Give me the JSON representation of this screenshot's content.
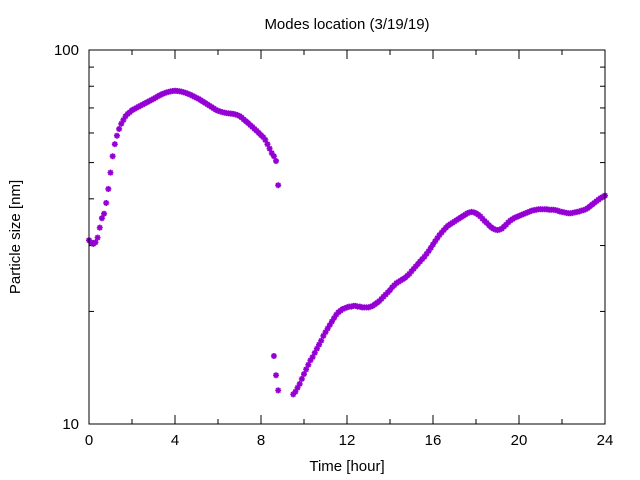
{
  "chart_data": {
    "type": "scatter",
    "title": "Modes location (3/19/19)",
    "xlabel": "Time [hour]",
    "ylabel": "Particle size [nm]",
    "xlim": [
      0,
      24
    ],
    "ylim": [
      10,
      100
    ],
    "yscale": "log",
    "xticks": [
      0,
      4,
      8,
      12,
      16,
      20,
      24
    ],
    "yticks": [
      10,
      100
    ],
    "grid": false,
    "marker_color": "#9400D3",
    "series": [
      {
        "points": [
          [
            0.0,
            31.0
          ],
          [
            0.1,
            30.6
          ],
          [
            0.2,
            30.3
          ],
          [
            0.3,
            30.6
          ],
          [
            0.4,
            31.5
          ],
          [
            0.5,
            33.5
          ],
          [
            0.6,
            35.5
          ],
          [
            0.7,
            36.5
          ],
          [
            0.8,
            39.0
          ],
          [
            0.9,
            42.5
          ],
          [
            1.0,
            47.0
          ],
          [
            1.1,
            52.0
          ],
          [
            1.2,
            56.0
          ],
          [
            1.3,
            59.0
          ],
          [
            1.4,
            61.5
          ],
          [
            1.5,
            63.5
          ],
          [
            1.6,
            65.0
          ],
          [
            1.7,
            66.5
          ],
          [
            1.8,
            67.5
          ],
          [
            1.9,
            68.2
          ],
          [
            2.0,
            69.0
          ],
          [
            2.1,
            69.5
          ],
          [
            2.2,
            70.0
          ],
          [
            2.3,
            70.5
          ],
          [
            2.4,
            71.0
          ],
          [
            2.5,
            71.5
          ],
          [
            2.6,
            72.0
          ],
          [
            2.7,
            72.5
          ],
          [
            2.8,
            73.0
          ],
          [
            2.9,
            73.5
          ],
          [
            3.0,
            74.0
          ],
          [
            3.1,
            74.6
          ],
          [
            3.2,
            75.2
          ],
          [
            3.3,
            75.7
          ],
          [
            3.4,
            76.2
          ],
          [
            3.5,
            76.6
          ],
          [
            3.6,
            77.0
          ],
          [
            3.7,
            77.3
          ],
          [
            3.8,
            77.5
          ],
          [
            3.9,
            77.7
          ],
          [
            4.0,
            77.8
          ],
          [
            4.1,
            77.7
          ],
          [
            4.2,
            77.6
          ],
          [
            4.3,
            77.4
          ],
          [
            4.4,
            77.1
          ],
          [
            4.5,
            76.8
          ],
          [
            4.6,
            76.4
          ],
          [
            4.7,
            76.0
          ],
          [
            4.8,
            75.5
          ],
          [
            4.9,
            75.0
          ],
          [
            5.0,
            74.5
          ],
          [
            5.1,
            74.0
          ],
          [
            5.2,
            73.4
          ],
          [
            5.3,
            72.8
          ],
          [
            5.4,
            72.2
          ],
          [
            5.5,
            71.6
          ],
          [
            5.6,
            71.0
          ],
          [
            5.7,
            70.4
          ],
          [
            5.8,
            69.8
          ],
          [
            5.9,
            69.2
          ],
          [
            6.0,
            68.8
          ],
          [
            6.1,
            68.5
          ],
          [
            6.2,
            68.2
          ],
          [
            6.3,
            68.0
          ],
          [
            6.4,
            67.8
          ],
          [
            6.5,
            67.7
          ],
          [
            6.6,
            67.6
          ],
          [
            6.7,
            67.5
          ],
          [
            6.8,
            67.3
          ],
          [
            6.9,
            67.0
          ],
          [
            7.0,
            66.6
          ],
          [
            7.1,
            66.0
          ],
          [
            7.2,
            65.2
          ],
          [
            7.3,
            64.5
          ],
          [
            7.4,
            63.8
          ],
          [
            7.5,
            63.0
          ],
          [
            7.6,
            62.3
          ],
          [
            7.7,
            61.5
          ],
          [
            7.8,
            60.8
          ],
          [
            7.9,
            60.0
          ],
          [
            8.0,
            59.2
          ],
          [
            8.1,
            58.5
          ],
          [
            8.2,
            57.5
          ],
          [
            8.3,
            56.0
          ],
          [
            8.4,
            54.5
          ],
          [
            8.5,
            53.0
          ],
          [
            8.6,
            52.0
          ],
          [
            8.7,
            50.5
          ],
          [
            8.8,
            43.5
          ],
          [
            8.6,
            15.2
          ],
          [
            8.7,
            13.5
          ],
          [
            8.8,
            12.3
          ],
          [
            9.5,
            12.0
          ],
          [
            9.6,
            12.2
          ],
          [
            9.7,
            12.5
          ],
          [
            9.8,
            12.8
          ],
          [
            9.9,
            13.2
          ],
          [
            10.0,
            13.6
          ],
          [
            10.1,
            14.0
          ],
          [
            10.2,
            14.4
          ],
          [
            10.3,
            14.8
          ],
          [
            10.4,
            15.1
          ],
          [
            10.5,
            15.5
          ],
          [
            10.6,
            15.9
          ],
          [
            10.7,
            16.3
          ],
          [
            10.8,
            16.7
          ],
          [
            10.9,
            17.2
          ],
          [
            11.0,
            17.6
          ],
          [
            11.1,
            18.0
          ],
          [
            11.2,
            18.4
          ],
          [
            11.3,
            18.8
          ],
          [
            11.4,
            19.2
          ],
          [
            11.5,
            19.6
          ],
          [
            11.6,
            19.9
          ],
          [
            11.7,
            20.1
          ],
          [
            11.8,
            20.3
          ],
          [
            11.9,
            20.4
          ],
          [
            12.0,
            20.5
          ],
          [
            12.1,
            20.6
          ],
          [
            12.2,
            20.6
          ],
          [
            12.3,
            20.7
          ],
          [
            12.4,
            20.7
          ],
          [
            12.5,
            20.6
          ],
          [
            12.6,
            20.6
          ],
          [
            12.7,
            20.5
          ],
          [
            12.8,
            20.5
          ],
          [
            12.9,
            20.5
          ],
          [
            13.0,
            20.5
          ],
          [
            13.1,
            20.6
          ],
          [
            13.2,
            20.7
          ],
          [
            13.3,
            20.9
          ],
          [
            13.4,
            21.1
          ],
          [
            13.5,
            21.3
          ],
          [
            13.6,
            21.6
          ],
          [
            13.7,
            21.9
          ],
          [
            13.8,
            22.2
          ],
          [
            13.9,
            22.5
          ],
          [
            14.0,
            22.8
          ],
          [
            14.1,
            23.2
          ],
          [
            14.2,
            23.5
          ],
          [
            14.3,
            23.8
          ],
          [
            14.4,
            24.0
          ],
          [
            14.5,
            24.2
          ],
          [
            14.6,
            24.4
          ],
          [
            14.7,
            24.6
          ],
          [
            14.8,
            24.9
          ],
          [
            14.9,
            25.2
          ],
          [
            15.0,
            25.6
          ],
          [
            15.1,
            26.0
          ],
          [
            15.2,
            26.4
          ],
          [
            15.3,
            26.8
          ],
          [
            15.4,
            27.2
          ],
          [
            15.5,
            27.6
          ],
          [
            15.6,
            28.0
          ],
          [
            15.7,
            28.5
          ],
          [
            15.8,
            29.0
          ],
          [
            15.9,
            29.6
          ],
          [
            16.0,
            30.2
          ],
          [
            16.1,
            30.8
          ],
          [
            16.2,
            31.4
          ],
          [
            16.3,
            32.0
          ],
          [
            16.4,
            32.5
          ],
          [
            16.5,
            33.0
          ],
          [
            16.6,
            33.5
          ],
          [
            16.7,
            33.9
          ],
          [
            16.8,
            34.2
          ],
          [
            16.9,
            34.5
          ],
          [
            17.0,
            34.8
          ],
          [
            17.1,
            35.1
          ],
          [
            17.2,
            35.4
          ],
          [
            17.3,
            35.7
          ],
          [
            17.4,
            36.0
          ],
          [
            17.5,
            36.3
          ],
          [
            17.6,
            36.6
          ],
          [
            17.7,
            36.8
          ],
          [
            17.8,
            36.9
          ],
          [
            17.9,
            36.8
          ],
          [
            18.0,
            36.6
          ],
          [
            18.1,
            36.3
          ],
          [
            18.2,
            35.9
          ],
          [
            18.3,
            35.4
          ],
          [
            18.4,
            34.9
          ],
          [
            18.5,
            34.5
          ],
          [
            18.6,
            34.0
          ],
          [
            18.7,
            33.6
          ],
          [
            18.8,
            33.3
          ],
          [
            18.9,
            33.1
          ],
          [
            19.0,
            33.0
          ],
          [
            19.1,
            33.1
          ],
          [
            19.2,
            33.3
          ],
          [
            19.3,
            33.7
          ],
          [
            19.4,
            34.1
          ],
          [
            19.5,
            34.6
          ],
          [
            19.6,
            35.0
          ],
          [
            19.7,
            35.3
          ],
          [
            19.8,
            35.6
          ],
          [
            19.9,
            35.8
          ],
          [
            20.0,
            36.0
          ],
          [
            20.1,
            36.2
          ],
          [
            20.2,
            36.4
          ],
          [
            20.3,
            36.6
          ],
          [
            20.4,
            36.8
          ],
          [
            20.5,
            37.0
          ],
          [
            20.6,
            37.2
          ],
          [
            20.7,
            37.3
          ],
          [
            20.8,
            37.4
          ],
          [
            20.9,
            37.5
          ],
          [
            21.0,
            37.5
          ],
          [
            21.1,
            37.5
          ],
          [
            21.2,
            37.5
          ],
          [
            21.3,
            37.5
          ],
          [
            21.4,
            37.4
          ],
          [
            21.5,
            37.4
          ],
          [
            21.6,
            37.4
          ],
          [
            21.7,
            37.3
          ],
          [
            21.8,
            37.2
          ],
          [
            21.9,
            37.0
          ],
          [
            22.0,
            36.9
          ],
          [
            22.1,
            36.8
          ],
          [
            22.2,
            36.7
          ],
          [
            22.3,
            36.6
          ],
          [
            22.4,
            36.6
          ],
          [
            22.5,
            36.7
          ],
          [
            22.6,
            36.8
          ],
          [
            22.7,
            36.9
          ],
          [
            22.8,
            37.0
          ],
          [
            22.9,
            37.2
          ],
          [
            23.0,
            37.3
          ],
          [
            23.1,
            37.5
          ],
          [
            23.2,
            37.8
          ],
          [
            23.3,
            38.2
          ],
          [
            23.4,
            38.6
          ],
          [
            23.5,
            39.0
          ],
          [
            23.6,
            39.4
          ],
          [
            23.7,
            39.8
          ],
          [
            23.8,
            40.2
          ],
          [
            23.9,
            40.5
          ],
          [
            24.0,
            40.8
          ]
        ]
      }
    ]
  }
}
